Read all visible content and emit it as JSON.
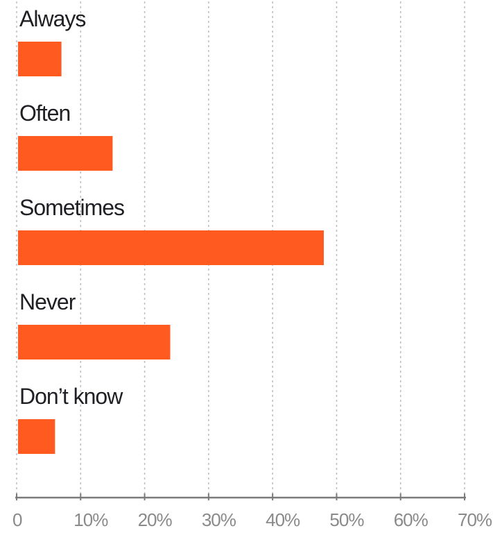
{
  "chart_data": {
    "type": "bar",
    "orientation": "horizontal",
    "categories": [
      "Always",
      "Often",
      "Sometimes",
      "Never",
      "Don’t know"
    ],
    "values": [
      7,
      15,
      48,
      24,
      6
    ],
    "xlim": [
      0,
      70
    ],
    "ticks": [
      0,
      10,
      20,
      30,
      40,
      50,
      60,
      70
    ],
    "tick_labels": [
      "0",
      "10%",
      "20%",
      "30%",
      "40%",
      "50%",
      "60%",
      "70%"
    ],
    "title": "",
    "xlabel": "",
    "ylabel": "",
    "grid": "vertical dotted",
    "legend": "none",
    "bar_color": "#ff5a1f",
    "grid_color": "#bdbdbd",
    "axis_color": "#7a7a7a"
  }
}
